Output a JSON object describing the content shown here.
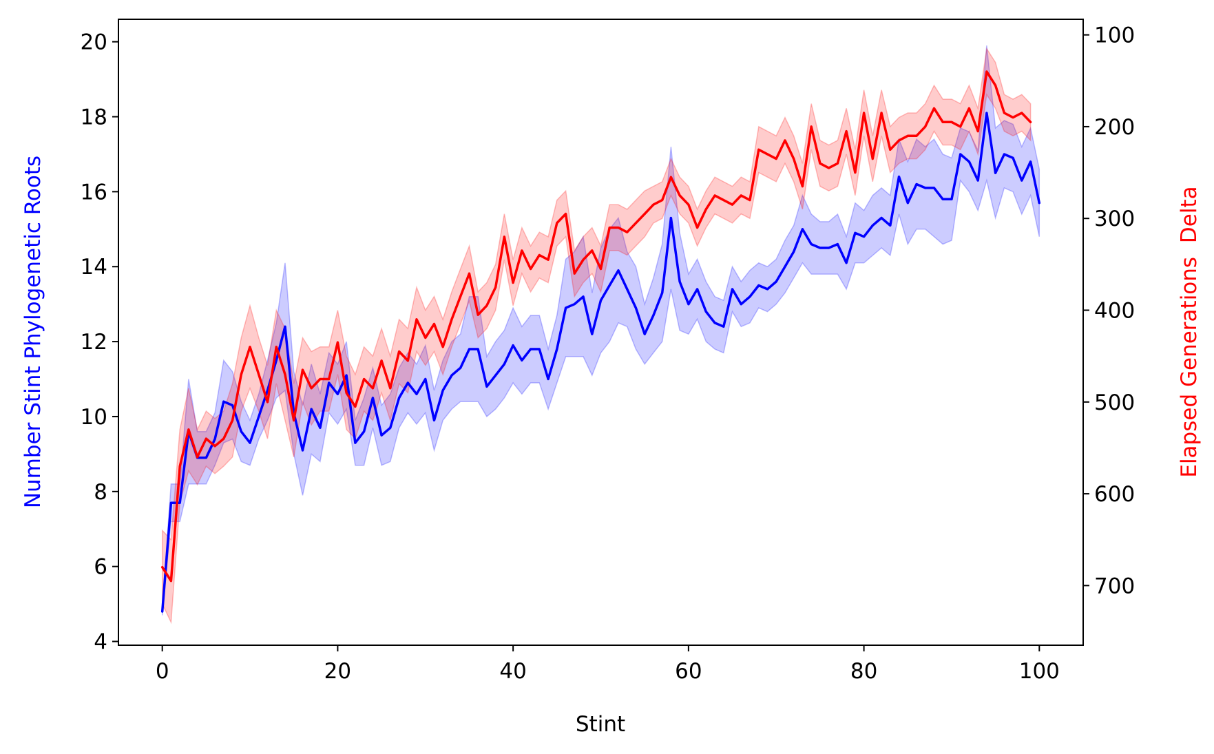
{
  "chart_data": {
    "type": "line",
    "xlabel": "Stint",
    "x_ticks": [
      0,
      20,
      40,
      60,
      80,
      100
    ],
    "xlim": [
      -5,
      105
    ],
    "left_axis": {
      "label": "Number Stint Phylogenetic Roots",
      "color": "#0000ff",
      "ylim": [
        3.9,
        20.6
      ],
      "ticks": [
        4,
        6,
        8,
        10,
        12,
        14,
        16,
        18,
        20
      ]
    },
    "right_axis": {
      "label_parts": [
        {
          "text": "Elapsed Generations",
          "color": "#ff0000"
        },
        {
          "text": "Delta",
          "color": "#ff0000"
        }
      ],
      "inverted": true,
      "ylim": [
        765,
        83
      ],
      "ticks": [
        100,
        200,
        300,
        400,
        500,
        600,
        700
      ]
    },
    "grid": false,
    "series": [
      {
        "axis": "left",
        "color": "#0000ff",
        "band_color": "#0000ff",
        "x_start": 0,
        "values": [
          4.8,
          7.7,
          7.7,
          9.6,
          8.9,
          8.9,
          9.4,
          10.4,
          10.3,
          9.6,
          9.3,
          10.0,
          10.7,
          11.5,
          12.4,
          10.1,
          9.1,
          10.2,
          9.7,
          10.9,
          10.6,
          11.1,
          9.3,
          9.6,
          10.5,
          9.5,
          9.7,
          10.5,
          10.9,
          10.6,
          11.0,
          9.9,
          10.7,
          11.1,
          11.3,
          11.8,
          11.8,
          10.8,
          11.1,
          11.4,
          11.9,
          11.5,
          11.8,
          11.8,
          11.0,
          11.8,
          12.9,
          13.0,
          13.2,
          12.2,
          13.1,
          13.5,
          13.9,
          13.4,
          12.9,
          12.2,
          12.7,
          13.3,
          15.3,
          13.6,
          13.0,
          13.4,
          12.8,
          12.5,
          12.4,
          13.4,
          13.0,
          13.2,
          13.5,
          13.4,
          13.6,
          14.0,
          14.4,
          15.0,
          14.6,
          14.5,
          14.5,
          14.6,
          14.1,
          14.9,
          14.8,
          15.1,
          15.3,
          15.1,
          16.4,
          15.7,
          16.2,
          16.1,
          16.1,
          15.8,
          15.8,
          17.0,
          16.8,
          16.3,
          18.1,
          16.5,
          17.0,
          16.9,
          16.3,
          16.8,
          15.7
        ],
        "band_halfwidth": [
          0.1,
          0.5,
          0.5,
          1.4,
          0.7,
          0.7,
          0.7,
          1.1,
          0.9,
          0.8,
          0.6,
          0.6,
          0.8,
          1.0,
          1.7,
          1.1,
          1.2,
          1.2,
          0.9,
          0.8,
          0.8,
          0.9,
          0.6,
          0.9,
          0.8,
          0.8,
          0.9,
          0.8,
          0.8,
          0.8,
          0.9,
          0.8,
          0.8,
          0.9,
          0.9,
          1.4,
          1.4,
          0.8,
          0.9,
          0.9,
          1.0,
          0.9,
          0.9,
          0.9,
          0.8,
          0.9,
          1.3,
          1.4,
          1.6,
          1.1,
          1.4,
          1.5,
          1.4,
          1.0,
          1.1,
          0.8,
          1.0,
          1.3,
          1.9,
          1.3,
          0.8,
          0.8,
          0.8,
          0.7,
          0.7,
          0.6,
          0.6,
          0.7,
          0.6,
          0.6,
          0.6,
          0.7,
          0.7,
          0.9,
          0.8,
          0.7,
          0.7,
          0.8,
          0.7,
          0.8,
          0.7,
          0.8,
          0.8,
          0.8,
          1.0,
          1.1,
          1.2,
          1.1,
          1.3,
          1.2,
          1.1,
          0.7,
          0.8,
          0.8,
          1.8,
          1.2,
          0.9,
          0.9,
          0.9,
          0.9,
          0.9
        ]
      },
      {
        "axis": "right",
        "color": "#ff0000",
        "band_color": "#ff0000",
        "x_start": 0,
        "values": [
          680,
          695,
          570,
          530,
          560,
          540,
          548,
          540,
          520,
          470,
          440,
          470,
          500,
          440,
          470,
          520,
          465,
          485,
          475,
          475,
          435,
          490,
          505,
          475,
          485,
          455,
          485,
          445,
          455,
          410,
          430,
          415,
          440,
          410,
          385,
          360,
          405,
          395,
          375,
          320,
          370,
          335,
          355,
          340,
          345,
          305,
          295,
          360,
          345,
          335,
          355,
          310,
          310,
          315,
          305,
          295,
          285,
          280,
          255,
          275,
          285,
          310,
          290,
          275,
          280,
          285,
          275,
          280,
          225,
          230,
          235,
          215,
          235,
          265,
          200,
          240,
          245,
          240,
          205,
          250,
          185,
          235,
          185,
          225,
          215,
          210,
          210,
          200,
          180,
          195,
          195,
          200,
          180,
          205,
          140,
          155,
          185,
          190,
          185,
          195
        ],
        "band_halfwidth": [
          40,
          45,
          40,
          45,
          30,
          30,
          30,
          30,
          40,
          40,
          45,
          40,
          40,
          40,
          50,
          40,
          35,
          40,
          35,
          35,
          35,
          40,
          35,
          35,
          35,
          35,
          35,
          35,
          35,
          35,
          30,
          30,
          30,
          30,
          30,
          30,
          25,
          25,
          25,
          25,
          25,
          25,
          25,
          25,
          25,
          25,
          25,
          25,
          25,
          25,
          25,
          25,
          25,
          25,
          25,
          25,
          20,
          20,
          20,
          20,
          20,
          20,
          20,
          20,
          20,
          20,
          20,
          20,
          25,
          25,
          25,
          25,
          25,
          25,
          25,
          25,
          25,
          25,
          25,
          25,
          25,
          25,
          25,
          25,
          25,
          25,
          25,
          25,
          25,
          25,
          25,
          25,
          25,
          25,
          25,
          25,
          20,
          20,
          20,
          20
        ]
      }
    ]
  }
}
